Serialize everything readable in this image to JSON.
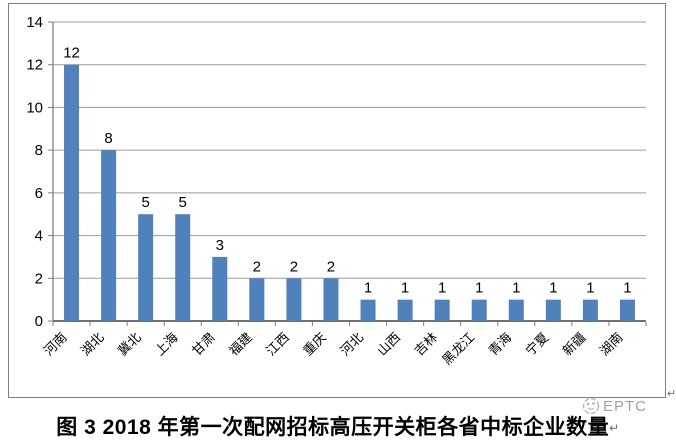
{
  "chart_data": {
    "type": "bar",
    "categories": [
      "河南",
      "湖北",
      "冀北",
      "上海",
      "甘肃",
      "福建",
      "江西",
      "重庆",
      "河北",
      "山西",
      "吉林",
      "黑龙江",
      "青海",
      "宁夏",
      "新疆",
      "湖南"
    ],
    "values": [
      12,
      8,
      5,
      5,
      3,
      2,
      2,
      2,
      1,
      1,
      1,
      1,
      1,
      1,
      1,
      1
    ],
    "title": "",
    "xlabel": "",
    "ylabel": "",
    "ylim": [
      0,
      14
    ],
    "yticks": [
      0,
      2,
      4,
      6,
      8,
      10,
      12,
      14
    ],
    "grid": true,
    "legend": "none",
    "data_labels_shown": true,
    "x_label_rotation_deg": 45,
    "colors": {
      "bar": "#4f81bd",
      "gridline": "#9c9c9c",
      "axis": "#707070",
      "tick": "#7f7f7f",
      "text": "#000000",
      "frame_border": "#7f7f7f"
    }
  },
  "caption": {
    "text": "图 3 2018 年第一次配网招标高压开关柜各省中标企业数量"
  },
  "watermark": {
    "text": "EPTC",
    "color": "#a3a3a3"
  },
  "marks": {
    "after_chart": "↵",
    "after_caption": "↵"
  }
}
